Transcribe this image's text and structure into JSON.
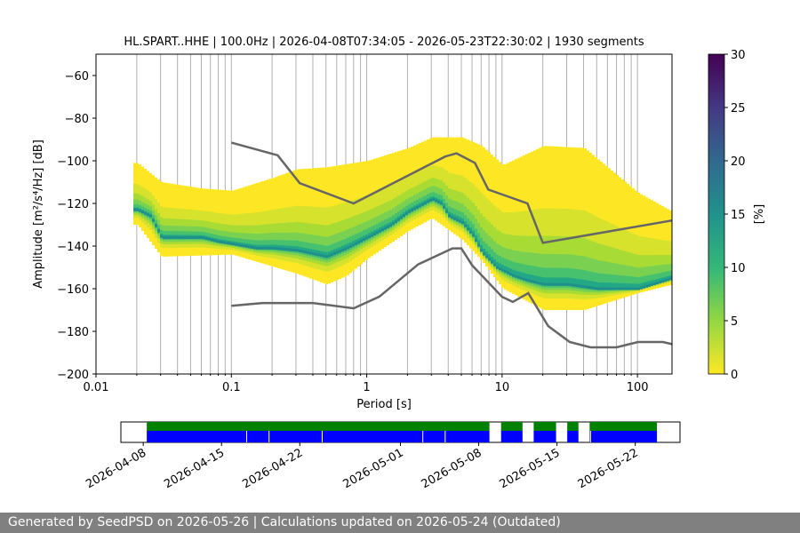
{
  "chart_data": {
    "type": "heatmap",
    "title": "HL.SPART..HHE | 100.0Hz | 2026-04-08T07:34:05 - 2026-05-23T22:30:02 | 1930 segments",
    "xlabel": "Period [s]",
    "ylabel": "Amplitude [m²/s⁴/Hz] [dB]",
    "x_scale": "log",
    "xlim": [
      0.01,
      180
    ],
    "ylim": [
      -200,
      -50
    ],
    "x_ticks": [
      {
        "value": 0.01,
        "label": "0.01"
      },
      {
        "value": 0.1,
        "label": "0.1"
      },
      {
        "value": 1,
        "label": "1"
      },
      {
        "value": 10,
        "label": "10"
      },
      {
        "value": 100,
        "label": "100"
      }
    ],
    "y_ticks": [
      -60,
      -80,
      -100,
      -120,
      -140,
      -160,
      -180,
      -200
    ],
    "grid": true,
    "colorbar": {
      "label": "[%]",
      "min": 0,
      "max": 30,
      "ticks": [
        0,
        5,
        10,
        15,
        20,
        25,
        30
      ],
      "colormap": "viridis_r"
    },
    "psd_mode": [
      [
        0.02,
        -123
      ],
      [
        0.025,
        -126
      ],
      [
        0.03,
        -136
      ],
      [
        0.04,
        -136
      ],
      [
        0.06,
        -136
      ],
      [
        0.08,
        -138
      ],
      [
        0.1,
        -139
      ],
      [
        0.15,
        -141
      ],
      [
        0.2,
        -141
      ],
      [
        0.3,
        -142
      ],
      [
        0.5,
        -145
      ],
      [
        0.7,
        -141
      ],
      [
        1,
        -136
      ],
      [
        1.5,
        -130
      ],
      [
        2,
        -124
      ],
      [
        3,
        -118
      ],
      [
        3.5,
        -120
      ],
      [
        4,
        -126
      ],
      [
        5,
        -129
      ],
      [
        6,
        -135
      ],
      [
        7,
        -143
      ],
      [
        9,
        -150
      ],
      [
        12,
        -154
      ],
      [
        15,
        -156
      ],
      [
        20,
        -158
      ],
      [
        30,
        -158
      ],
      [
        50,
        -160
      ],
      [
        100,
        -160
      ],
      [
        180,
        -155
      ]
    ],
    "psd_upper": [
      [
        0.02,
        -101
      ],
      [
        0.03,
        -110
      ],
      [
        0.06,
        -113
      ],
      [
        0.1,
        -114
      ],
      [
        0.2,
        -108
      ],
      [
        0.3,
        -104
      ],
      [
        0.5,
        -103
      ],
      [
        1,
        -100
      ],
      [
        2,
        -94
      ],
      [
        3,
        -89
      ],
      [
        5,
        -89
      ],
      [
        7,
        -93
      ],
      [
        10,
        -102
      ],
      [
        20,
        -93
      ],
      [
        40,
        -94
      ],
      [
        100,
        -115
      ],
      [
        180,
        -124
      ]
    ],
    "psd_lower": [
      [
        0.02,
        -130
      ],
      [
        0.03,
        -145
      ],
      [
        0.1,
        -144
      ],
      [
        0.3,
        -153
      ],
      [
        0.5,
        -158
      ],
      [
        0.7,
        -154
      ],
      [
        1,
        -146
      ],
      [
        2,
        -133
      ],
      [
        3,
        -127
      ],
      [
        5,
        -137
      ],
      [
        7,
        -147
      ],
      [
        10,
        -160
      ],
      [
        20,
        -170
      ],
      [
        40,
        -170
      ],
      [
        100,
        -162
      ],
      [
        180,
        -158
      ]
    ],
    "nlnm": [
      [
        0.1,
        -168
      ],
      [
        0.17,
        -166.7
      ],
      [
        0.4,
        -166.7
      ],
      [
        0.8,
        -169.2
      ],
      [
        1.24,
        -163.7
      ],
      [
        2.4,
        -148.6
      ],
      [
        4.3,
        -141.1
      ],
      [
        5,
        -141.1
      ],
      [
        6,
        -149
      ],
      [
        10,
        -163.8
      ],
      [
        12,
        -166.2
      ],
      [
        15.6,
        -162.1
      ],
      [
        21.9,
        -177.5
      ],
      [
        31.6,
        -185
      ],
      [
        45,
        -187.5
      ],
      [
        70,
        -187.5
      ],
      [
        101,
        -185
      ],
      [
        154,
        -185
      ],
      [
        180,
        -186
      ]
    ],
    "nhnm": [
      [
        0.1,
        -91.5
      ],
      [
        0.22,
        -97.4
      ],
      [
        0.32,
        -110.5
      ],
      [
        0.8,
        -120
      ],
      [
        3.8,
        -98
      ],
      [
        4.6,
        -96.5
      ],
      [
        6.3,
        -101
      ],
      [
        7.9,
        -113.5
      ],
      [
        15.4,
        -120
      ],
      [
        20,
        -138.5
      ],
      [
        180,
        -128
      ]
    ]
  },
  "coverage": {
    "dates": [
      "2026-04-08",
      "2026-04-15",
      "2026-04-22",
      "2026-05-01",
      "2026-05-08",
      "2026-05-15",
      "2026-05-22"
    ],
    "green_color": "#008000",
    "blue_color": "#0000ff"
  },
  "footer": {
    "text": "Generated by SeedPSD on 2026-05-26 | Calculations updated on 2026-05-24 (Outdated)"
  }
}
